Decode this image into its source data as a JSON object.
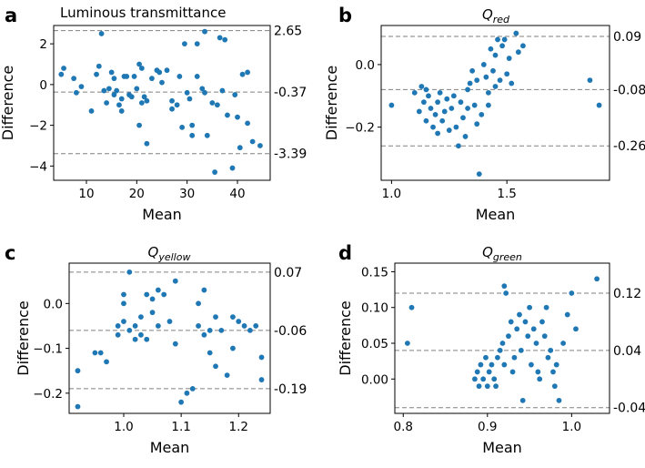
{
  "chart_data": [
    {
      "id": "a",
      "type": "scatter",
      "panel_label": "a",
      "title": "Luminous transmittance",
      "title_sub": "",
      "xlabel": "Mean",
      "ylabel": "Difference",
      "xlim": [
        3.5,
        46.5
      ],
      "ylim": [
        -4.7,
        2.9
      ],
      "xticks": [
        10,
        20,
        30,
        40
      ],
      "xticklabels": [
        "10",
        "20",
        "30",
        "40"
      ],
      "yticks": [
        2,
        0,
        -2,
        -4
      ],
      "yticklabels": [
        "2",
        "0",
        "−2",
        "−4"
      ],
      "reference_lines": [
        {
          "value": 2.65,
          "label": "2.65"
        },
        {
          "value": -0.37,
          "label": "-0.37"
        },
        {
          "value": -3.39,
          "label": "-3.39"
        }
      ],
      "color": "#1f77b4",
      "points": [
        [
          5,
          0.5
        ],
        [
          5.5,
          0.8
        ],
        [
          7.5,
          0.3
        ],
        [
          8,
          -0.4
        ],
        [
          9,
          -0.1
        ],
        [
          11,
          -1.3
        ],
        [
          12,
          0.5
        ],
        [
          12.5,
          0.9
        ],
        [
          13,
          2.5
        ],
        [
          13.5,
          -0.3
        ],
        [
          14,
          -0.9
        ],
        [
          14.5,
          -0.2
        ],
        [
          15,
          0.6
        ],
        [
          15.5,
          0.3
        ],
        [
          15.5,
          -0.5
        ],
        [
          16,
          -0.3
        ],
        [
          16.5,
          -1.0
        ],
        [
          17,
          -0.7
        ],
        [
          17,
          -1.3
        ],
        [
          17.5,
          0.4
        ],
        [
          18,
          0.4
        ],
        [
          18.5,
          -0.5
        ],
        [
          19,
          -0.6
        ],
        [
          19.5,
          0.4
        ],
        [
          20,
          -0.2
        ],
        [
          20.5,
          1.0
        ],
        [
          20.5,
          -2.0
        ],
        [
          21,
          0.8
        ],
        [
          21,
          -0.9
        ],
        [
          21.5,
          -0.6
        ],
        [
          22,
          -2.9
        ],
        [
          22,
          -0.8
        ],
        [
          23,
          0.3
        ],
        [
          24,
          0.7
        ],
        [
          24.5,
          0.6
        ],
        [
          25,
          0.1
        ],
        [
          26,
          0.7
        ],
        [
          27,
          -0.8
        ],
        [
          27,
          -1.2
        ],
        [
          28,
          -1.0
        ],
        [
          28.5,
          0.4
        ],
        [
          29,
          -2.1
        ],
        [
          29.5,
          2.0
        ],
        [
          30,
          -0.4
        ],
        [
          30.5,
          -0.7
        ],
        [
          31,
          -2.5
        ],
        [
          31,
          -2.0
        ],
        [
          32,
          2.0
        ],
        [
          32,
          0.4
        ],
        [
          33,
          -0.2
        ],
        [
          33.5,
          -0.4
        ],
        [
          33.5,
          2.6
        ],
        [
          34,
          -2.5
        ],
        [
          35,
          -0.9
        ],
        [
          35.5,
          -4.3
        ],
        [
          36,
          -1.0
        ],
        [
          36.5,
          2.3
        ],
        [
          37,
          -0.3
        ],
        [
          37.5,
          2.2
        ],
        [
          38,
          -1.5
        ],
        [
          39,
          -4.1
        ],
        [
          39.5,
          -0.5
        ],
        [
          40,
          -1.6
        ],
        [
          40.5,
          -3.1
        ],
        [
          41,
          0.5
        ],
        [
          42,
          0.6
        ],
        [
          42,
          -1.9
        ],
        [
          43,
          -2.8
        ],
        [
          44.5,
          -3.0
        ]
      ]
    },
    {
      "id": "b",
      "type": "scatter",
      "panel_label": "b",
      "title": "Q",
      "title_sub": "red",
      "xlabel": "Mean",
      "ylabel": "Difference",
      "xlim": [
        0.955,
        1.945
      ],
      "ylim": [
        -0.37,
        0.125
      ],
      "xticks": [
        1.0,
        1.5
      ],
      "xticklabels": [
        "1.0",
        "1.5"
      ],
      "yticks": [
        0.0,
        -0.2
      ],
      "yticklabels": [
        "0.0",
        "−0.2"
      ],
      "reference_lines": [
        {
          "value": 0.09,
          "label": "0.09"
        },
        {
          "value": -0.08,
          "label": "-0.08"
        },
        {
          "value": -0.26,
          "label": "-0.26"
        }
      ],
      "color": "#1f77b4",
      "points": [
        [
          1.0,
          -0.13
        ],
        [
          1.1,
          -0.09
        ],
        [
          1.12,
          -0.15
        ],
        [
          1.13,
          -0.07
        ],
        [
          1.14,
          -0.12
        ],
        [
          1.15,
          -0.08
        ],
        [
          1.15,
          -0.18
        ],
        [
          1.16,
          -0.1
        ],
        [
          1.17,
          -0.14
        ],
        [
          1.18,
          -0.2
        ],
        [
          1.19,
          -0.16
        ],
        [
          1.2,
          -0.22
        ],
        [
          1.2,
          -0.12
        ],
        [
          1.21,
          -0.09
        ],
        [
          1.22,
          -0.18
        ],
        [
          1.23,
          -0.15
        ],
        [
          1.24,
          -0.11
        ],
        [
          1.25,
          -0.21
        ],
        [
          1.26,
          -0.14
        ],
        [
          1.27,
          -0.1
        ],
        [
          1.28,
          -0.2
        ],
        [
          1.29,
          -0.26
        ],
        [
          1.3,
          -0.12
        ],
        [
          1.31,
          -0.17
        ],
        [
          1.32,
          -0.23
        ],
        [
          1.33,
          -0.08
        ],
        [
          1.33,
          -0.14
        ],
        [
          1.34,
          -0.06
        ],
        [
          1.35,
          -0.02
        ],
        [
          1.36,
          -0.13
        ],
        [
          1.37,
          -0.19
        ],
        [
          1.37,
          -0.05
        ],
        [
          1.38,
          -0.35
        ],
        [
          1.39,
          -0.16
        ],
        [
          1.4,
          0.0
        ],
        [
          1.41,
          -0.04
        ],
        [
          1.42,
          -0.09
        ],
        [
          1.42,
          -0.13
        ],
        [
          1.43,
          0.05
        ],
        [
          1.44,
          -0.02
        ],
        [
          1.45,
          0.03
        ],
        [
          1.45,
          -0.07
        ],
        [
          1.46,
          0.08
        ],
        [
          1.47,
          -0.05
        ],
        [
          1.48,
          0.06
        ],
        [
          1.49,
          0.08
        ],
        [
          1.5,
          -0.03
        ],
        [
          1.51,
          0.02
        ],
        [
          1.52,
          -0.06
        ],
        [
          1.54,
          0.1
        ],
        [
          1.55,
          0.04
        ],
        [
          1.57,
          0.06
        ],
        [
          1.86,
          -0.05
        ],
        [
          1.9,
          -0.13
        ]
      ]
    },
    {
      "id": "c",
      "type": "scatter",
      "panel_label": "c",
      "title": "Q",
      "title_sub": "yellow",
      "xlabel": "Mean",
      "ylabel": "Difference",
      "xlim": [
        0.905,
        1.255
      ],
      "ylim": [
        -0.245,
        0.09
      ],
      "xticks": [
        1.0,
        1.1,
        1.2
      ],
      "xticklabels": [
        "1.0",
        "1.1",
        "1.2"
      ],
      "yticks": [
        0.0,
        -0.1,
        -0.2
      ],
      "yticklabels": [
        "0.0",
        "−0.1",
        "−0.2"
      ],
      "reference_lines": [
        {
          "value": 0.07,
          "label": "0.07"
        },
        {
          "value": -0.06,
          "label": "-0.06"
        },
        {
          "value": -0.19,
          "label": "-0.19"
        }
      ],
      "color": "#1f77b4",
      "points": [
        [
          0.92,
          -0.15
        ],
        [
          0.92,
          -0.23
        ],
        [
          0.95,
          -0.11
        ],
        [
          0.96,
          -0.11
        ],
        [
          0.97,
          -0.13
        ],
        [
          0.99,
          -0.05
        ],
        [
          0.99,
          -0.07
        ],
        [
          1.0,
          0.0
        ],
        [
          1.0,
          0.02
        ],
        [
          1.0,
          -0.04
        ],
        [
          1.01,
          -0.06
        ],
        [
          1.01,
          0.07
        ],
        [
          1.02,
          -0.08
        ],
        [
          1.02,
          -0.05
        ],
        [
          1.03,
          -0.07
        ],
        [
          1.03,
          -0.03
        ],
        [
          1.04,
          0.02
        ],
        [
          1.04,
          -0.08
        ],
        [
          1.05,
          0.01
        ],
        [
          1.05,
          -0.02
        ],
        [
          1.06,
          -0.05
        ],
        [
          1.06,
          0.03
        ],
        [
          1.07,
          0.02
        ],
        [
          1.08,
          -0.04
        ],
        [
          1.09,
          0.05
        ],
        [
          1.09,
          -0.09
        ],
        [
          1.1,
          -0.22
        ],
        [
          1.11,
          -0.2
        ],
        [
          1.12,
          -0.19
        ],
        [
          1.13,
          -0.05
        ],
        [
          1.13,
          0.0
        ],
        [
          1.14,
          0.03
        ],
        [
          1.14,
          -0.07
        ],
        [
          1.15,
          -0.06
        ],
        [
          1.15,
          -0.11
        ],
        [
          1.16,
          -0.14
        ],
        [
          1.16,
          -0.03
        ],
        [
          1.17,
          -0.06
        ],
        [
          1.18,
          -0.16
        ],
        [
          1.19,
          -0.03
        ],
        [
          1.19,
          -0.1
        ],
        [
          1.2,
          -0.04
        ],
        [
          1.21,
          -0.05
        ],
        [
          1.22,
          -0.06
        ],
        [
          1.23,
          -0.05
        ],
        [
          1.24,
          -0.17
        ],
        [
          1.24,
          -0.12
        ]
      ]
    },
    {
      "id": "d",
      "type": "scatter",
      "panel_label": "d",
      "title": "Q",
      "title_sub": "green",
      "xlabel": "Mean",
      "ylabel": "Difference",
      "xlim": [
        0.79,
        1.045
      ],
      "ylim": [
        -0.048,
        0.162
      ],
      "xticks": [
        0.8,
        0.9,
        1.0
      ],
      "xticklabels": [
        "0.8",
        "0.9",
        "1.0"
      ],
      "yticks": [
        0.15,
        0.1,
        0.05,
        0.0
      ],
      "yticklabels": [
        "0.15",
        "0.10",
        "0.05",
        "0.00"
      ],
      "reference_lines": [
        {
          "value": 0.12,
          "label": "0.12"
        },
        {
          "value": 0.04,
          "label": "0.04"
        },
        {
          "value": -0.04,
          "label": "-0.04"
        }
      ],
      "color": "#1f77b4",
      "points": [
        [
          0.805,
          0.05
        ],
        [
          0.81,
          0.1
        ],
        [
          0.885,
          0.0
        ],
        [
          0.888,
          0.01
        ],
        [
          0.89,
          -0.01
        ],
        [
          0.892,
          0.02
        ],
        [
          0.895,
          0.0
        ],
        [
          0.898,
          0.03
        ],
        [
          0.9,
          -0.01
        ],
        [
          0.902,
          0.01
        ],
        [
          0.905,
          0.02
        ],
        [
          0.908,
          0.0
        ],
        [
          0.91,
          -0.01
        ],
        [
          0.912,
          0.03
        ],
        [
          0.915,
          0.04
        ],
        [
          0.918,
          0.05
        ],
        [
          0.92,
          0.13
        ],
        [
          0.92,
          0.02
        ],
        [
          0.922,
          0.12
        ],
        [
          0.925,
          0.06
        ],
        [
          0.928,
          0.08
        ],
        [
          0.93,
          0.01
        ],
        [
          0.932,
          0.03
        ],
        [
          0.935,
          0.07
        ],
        [
          0.938,
          0.09
        ],
        [
          0.94,
          0.04
        ],
        [
          0.942,
          -0.03
        ],
        [
          0.945,
          0.08
        ],
        [
          0.948,
          0.06
        ],
        [
          0.95,
          0.1
        ],
        [
          0.952,
          0.02
        ],
        [
          0.955,
          0.07
        ],
        [
          0.958,
          0.05
        ],
        [
          0.96,
          0.01
        ],
        [
          0.962,
          0.0
        ],
        [
          0.965,
          0.08
        ],
        [
          0.968,
          0.06
        ],
        [
          0.97,
          0.1
        ],
        [
          0.972,
          0.03
        ],
        [
          0.975,
          0.04
        ],
        [
          0.978,
          0.01
        ],
        [
          0.98,
          -0.01
        ],
        [
          0.982,
          0.02
        ],
        [
          0.985,
          -0.03
        ],
        [
          0.99,
          0.05
        ],
        [
          0.995,
          0.09
        ],
        [
          1.0,
          0.12
        ],
        [
          1.005,
          0.07
        ],
        [
          1.03,
          0.14
        ]
      ]
    }
  ]
}
